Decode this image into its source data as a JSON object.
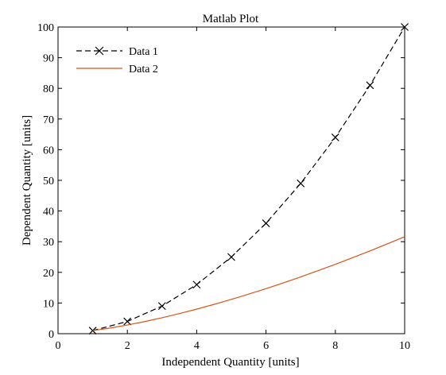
{
  "chart_data": {
    "type": "line",
    "title": "Matlab Plot",
    "xlabel": "Independent Quantity [units]",
    "ylabel": "Dependent Quantity [units]",
    "xlim": [
      0,
      10
    ],
    "ylim": [
      0,
      100
    ],
    "xticks": [
      0,
      2,
      4,
      6,
      8,
      10
    ],
    "yticks": [
      0,
      10,
      20,
      30,
      40,
      50,
      60,
      70,
      80,
      90,
      100
    ],
    "grid": false,
    "legend_position": "top-left",
    "series": [
      {
        "name": "Data 1",
        "color": "#000000",
        "line_style": "dashed",
        "marker": "x",
        "x": [
          1,
          2,
          3,
          4,
          5,
          6,
          7,
          8,
          9,
          10
        ],
        "y": [
          1,
          4,
          9,
          16,
          25,
          36,
          49,
          64,
          81,
          100
        ]
      },
      {
        "name": "Data 2",
        "color": "#d95319",
        "line_style": "solid",
        "marker": "none",
        "x": [
          1,
          1.5,
          2,
          2.5,
          3,
          3.5,
          4,
          4.5,
          5,
          5.5,
          6,
          6.5,
          7,
          7.5,
          8,
          8.5,
          9,
          9.5,
          10
        ],
        "y": [
          1,
          1.84,
          2.83,
          3.95,
          5.2,
          6.55,
          8,
          9.55,
          11.18,
          12.9,
          14.7,
          16.57,
          18.52,
          20.54,
          22.63,
          24.78,
          27,
          29.28,
          31.62
        ]
      }
    ]
  }
}
